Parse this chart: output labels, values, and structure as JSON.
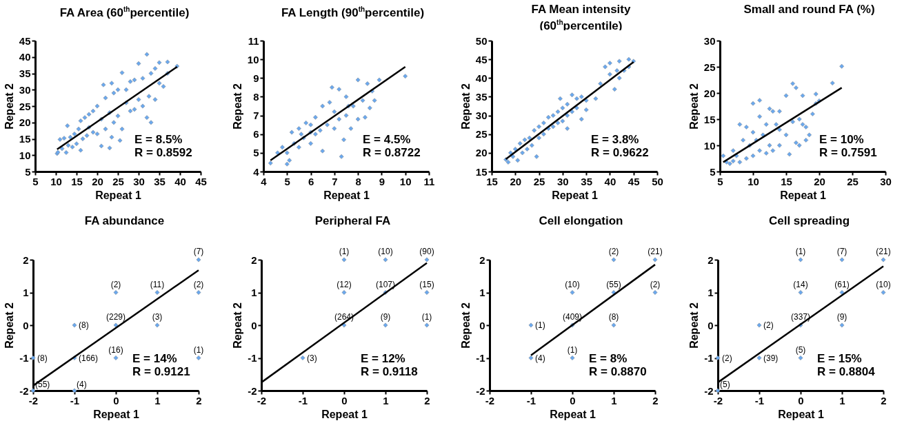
{
  "chart_data": [
    {
      "type": "scatter",
      "title": "FA Area (60$^{th}$percentile)",
      "xlabel": "Repeat 1",
      "ylabel": "Repeat 2",
      "xlim": [
        5,
        45
      ],
      "ylim": [
        5,
        45
      ],
      "xticks": [
        5,
        10,
        15,
        20,
        25,
        30,
        35,
        40,
        45
      ],
      "yticks": [
        5,
        10,
        15,
        20,
        25,
        30,
        35,
        40,
        45
      ],
      "annotations": [
        "E = 8.5%",
        "R = 0.8592"
      ],
      "series": [
        {
          "color": "#6aa8ee",
          "marker": "diamond",
          "x": [
            10.3,
            10.5,
            11,
            11.5,
            12,
            12.5,
            12.8,
            13,
            13.5,
            14,
            14.5,
            15,
            15.5,
            16,
            16,
            16.5,
            17,
            17.5,
            18,
            18,
            19,
            19,
            20,
            20,
            21,
            21,
            21.5,
            22,
            22,
            23,
            23,
            23.5,
            23.5,
            24,
            24,
            25,
            25,
            25.5,
            26,
            26,
            27,
            27,
            28,
            28,
            29,
            29,
            30,
            30,
            31,
            31,
            32,
            32,
            32.5,
            33,
            33,
            34,
            34,
            35,
            35,
            36,
            37,
            37,
            39.3
          ],
          "values": [
            10.5,
            10.9,
            14.8,
            12,
            15.2,
            10.8,
            19,
            13,
            15.5,
            12.5,
            16.5,
            13.5,
            18,
            11.5,
            20.5,
            15,
            21.5,
            16,
            18.5,
            22.5,
            17,
            23.5,
            16.5,
            25,
            12.8,
            21,
            31.5,
            18,
            27.5,
            12.2,
            23,
            15.5,
            32,
            20,
            29,
            22,
            30,
            14.5,
            18,
            35.2,
            26,
            30,
            23.5,
            32.5,
            24,
            33,
            27,
            38,
            25,
            33.5,
            21.5,
            40.8,
            28,
            20,
            35,
            27,
            36.5,
            32,
            38.3,
            31,
            38.5,
            35,
            37.2
          ]
        },
        {
          "type": "line",
          "color": "#000000",
          "x": [
            10.3,
            39.3
          ],
          "values": [
            11.8,
            37
          ]
        }
      ]
    },
    {
      "type": "scatter",
      "title": "FA Length (90$^{th}$percentile)",
      "xlabel": "Repeat 1",
      "ylabel": "Repeat 2",
      "xlim": [
        4,
        11
      ],
      "ylim": [
        4,
        11
      ],
      "xticks": [
        4,
        5,
        6,
        7,
        8,
        9,
        10,
        11
      ],
      "yticks": [
        4,
        5,
        6,
        7,
        8,
        9,
        10,
        11
      ],
      "annotations": [
        "E = 4.5%",
        "R = 0.8722"
      ],
      "series": [
        {
          "color": "#6aa8ee",
          "marker": "diamond",
          "x": [
            4.3,
            4.6,
            4.8,
            5,
            5,
            5.1,
            5.2,
            5.3,
            5.5,
            5.5,
            5.7,
            5.8,
            6,
            6,
            6.2,
            6.2,
            6.4,
            6.5,
            6.5,
            6.7,
            6.8,
            7,
            7,
            7.2,
            7.2,
            7.3,
            7.4,
            7.5,
            7.5,
            7.7,
            7.8,
            8,
            8,
            8.2,
            8.3,
            8.4,
            8.5,
            8.6,
            8.7,
            8.9,
            10,
            6.9,
            6,
            5.6,
            7.6
          ],
          "values": [
            4.45,
            5,
            5.3,
            4.4,
            5,
            4.6,
            6.1,
            5.5,
            5.3,
            6.3,
            5.8,
            6.6,
            5.5,
            6.5,
            6,
            6.9,
            6.2,
            5.1,
            7.5,
            6.5,
            7.7,
            6.3,
            7.2,
            6.8,
            8.4,
            4.8,
            5.7,
            7,
            8,
            6.3,
            7.5,
            6.8,
            8.9,
            7.8,
            6.9,
            8.7,
            7.4,
            8.3,
            7.8,
            8.9,
            9.1,
            8.5,
            6.1,
            6,
            7.5
          ]
        },
        {
          "type": "line",
          "color": "#000000",
          "x": [
            4.3,
            10
          ],
          "values": [
            4.6,
            9.6
          ]
        }
      ]
    },
    {
      "type": "scatter",
      "title": "FA Mean intensity (60$^{th}$percentile)",
      "xlabel": "Repeat 1",
      "ylabel": "Repeat 2",
      "xlim": [
        15,
        50
      ],
      "ylim": [
        15,
        50
      ],
      "xticks": [
        15,
        20,
        25,
        30,
        35,
        40,
        45,
        50
      ],
      "yticks": [
        15,
        20,
        25,
        30,
        35,
        40,
        45,
        50
      ],
      "annotations": [
        "E = 3.8%",
        "R = 0.9622"
      ],
      "series": [
        {
          "color": "#6aa8ee",
          "marker": "diamond",
          "x": [
            18,
            18.5,
            19,
            19.5,
            20,
            20.5,
            21,
            21.5,
            22,
            22.5,
            23,
            23.5,
            24,
            24.5,
            25,
            25,
            26,
            26,
            27,
            27,
            28,
            28,
            29,
            29,
            29.5,
            30,
            30,
            31,
            31,
            32,
            32,
            33,
            33,
            34,
            34,
            35,
            35,
            37,
            38,
            39,
            40,
            40,
            41,
            41.5,
            42,
            42,
            43,
            44,
            45,
            44,
            31
          ],
          "values": [
            18.2,
            17.5,
            20,
            19,
            21,
            18,
            22.5,
            20,
            23.5,
            21,
            24,
            22,
            26,
            19,
            27,
            24,
            28,
            25,
            29.5,
            26.5,
            30,
            27,
            31,
            28,
            34.5,
            32,
            28.5,
            33,
            30,
            35.5,
            31,
            34.5,
            32,
            35,
            29,
            34,
            31.5,
            34.5,
            38.5,
            43,
            41,
            44,
            37,
            42,
            44.5,
            40,
            42,
            45,
            44.5,
            43,
            26.5
          ]
        },
        {
          "type": "line",
          "color": "#000000",
          "x": [
            18,
            45
          ],
          "values": [
            18.3,
            44.3
          ]
        }
      ]
    },
    {
      "type": "scatter",
      "title": "Small and round FA (%)",
      "xlabel": "Repeat 1",
      "ylabel": "Repeat 2",
      "xlim": [
        5,
        30
      ],
      "ylim": [
        5,
        30
      ],
      "xticks": [
        5,
        10,
        15,
        20,
        25,
        30
      ],
      "yticks": [
        5,
        10,
        15,
        20,
        25,
        30
      ],
      "annotations": [
        "E = 10%",
        "R = 0.7591"
      ],
      "series": [
        {
          "color": "#6aa8ee",
          "marker": "diamond",
          "x": [
            5.5,
            6,
            6.5,
            7,
            7,
            7.5,
            8,
            8,
            8.5,
            9,
            9,
            9.5,
            10,
            10,
            10,
            10.5,
            11,
            11,
            11,
            11.5,
            12,
            12,
            12.5,
            12.5,
            13,
            13,
            13.5,
            14,
            14,
            15,
            15,
            15.5,
            16,
            16,
            16.5,
            16.5,
            17,
            17,
            17.5,
            17.5,
            18,
            18,
            18.5,
            19,
            19.5,
            19.5,
            20,
            22,
            23.4,
            14
          ],
          "values": [
            8,
            6.8,
            6.5,
            9,
            7,
            8,
            14,
            6.8,
            11,
            13.5,
            7.5,
            10,
            12.5,
            8,
            18,
            11,
            18.6,
            9,
            15.5,
            12,
            14,
            8.5,
            17,
            10,
            16.5,
            9,
            14,
            16.5,
            10,
            19.5,
            12,
            8.3,
            21.8,
            14.5,
            21,
            10.5,
            15,
            10,
            19.5,
            14,
            13.5,
            11,
            12,
            16,
            19.8,
            18,
            18.5,
            21.9,
            25.1,
            13
          ]
        },
        {
          "type": "line",
          "color": "#000000",
          "x": [
            5.5,
            23.4
          ],
          "values": [
            6.8,
            21
          ]
        }
      ]
    },
    {
      "type": "scatter",
      "title": "FA abundance",
      "xlabel": "Repeat 1",
      "ylabel": "Repeat 2",
      "xlim": [
        -2,
        2
      ],
      "ylim": [
        -2,
        2
      ],
      "xticks": [
        -2,
        -1,
        0,
        1,
        2
      ],
      "yticks": [
        -2,
        -1,
        0,
        1,
        2
      ],
      "annotations": [
        "E = 14%",
        "R = 0.9121",
        {
          "text": "(7)",
          "x": 2,
          "y": 2
        },
        {
          "text": "(2)",
          "x": 0,
          "y": 1
        },
        {
          "text": "(11)",
          "x": 1,
          "y": 1
        },
        {
          "text": "(2)",
          "x": 2,
          "y": 1
        },
        {
          "text": "(8)",
          "x": -1,
          "y": 0
        },
        {
          "text": "(229)",
          "x": 0,
          "y": 0
        },
        {
          "text": "(3)",
          "x": 1,
          "y": 0
        },
        {
          "text": "(8)",
          "x": -2,
          "y": -1
        },
        {
          "text": "(166)",
          "x": -1,
          "y": -1
        },
        {
          "text": "(16)",
          "x": 0,
          "y": -1
        },
        {
          "text": "(1)",
          "x": 2,
          "y": -1
        },
        {
          "text": "(55)",
          "x": -2,
          "y": -2
        },
        {
          "text": "(4)",
          "x": -1,
          "y": -2
        }
      ],
      "series": [
        {
          "color": "#6aa8ee",
          "marker": "diamond",
          "x": [
            2,
            0,
            1,
            2,
            -1,
            0,
            1,
            -2,
            -1,
            0,
            2,
            -2,
            -1
          ],
          "values": [
            2,
            1,
            1,
            1,
            0,
            0,
            0,
            -1,
            -1,
            -1,
            -1,
            -2,
            -2
          ]
        },
        {
          "type": "line",
          "color": "#000000",
          "x": [
            -2,
            2
          ],
          "values": [
            -1.85,
            1.68
          ]
        }
      ]
    },
    {
      "type": "scatter",
      "title": "Peripheral FA",
      "xlabel": "Repeat 1",
      "ylabel": "Repeat 2",
      "xlim": [
        -2,
        2
      ],
      "ylim": [
        -2,
        2
      ],
      "xticks": [
        -2,
        -1,
        0,
        1,
        2
      ],
      "yticks": [
        -2,
        -1,
        0,
        1,
        2
      ],
      "annotations": [
        "E = 12%",
        "R = 0.9118",
        {
          "text": "(1)",
          "x": 0,
          "y": 2
        },
        {
          "text": "(10)",
          "x": 1,
          "y": 2
        },
        {
          "text": "(90)",
          "x": 2,
          "y": 2
        },
        {
          "text": "(12)",
          "x": 0,
          "y": 1
        },
        {
          "text": "(107)",
          "x": 1,
          "y": 1
        },
        {
          "text": "(15)",
          "x": 2,
          "y": 1
        },
        {
          "text": "(264)",
          "x": 0,
          "y": 0
        },
        {
          "text": "(9)",
          "x": 1,
          "y": 0
        },
        {
          "text": "(1)",
          "x": 2,
          "y": 0
        },
        {
          "text": "(3)",
          "x": -1,
          "y": -1
        }
      ],
      "series": [
        {
          "color": "#6aa8ee",
          "marker": "diamond",
          "x": [
            0,
            1,
            2,
            0,
            1,
            2,
            0,
            1,
            2,
            -1
          ],
          "values": [
            2,
            2,
            2,
            1,
            1,
            1,
            0,
            0,
            0,
            -1
          ]
        },
        {
          "type": "line",
          "color": "#000000",
          "x": [
            -2,
            2
          ],
          "values": [
            -1.75,
            1.9
          ]
        }
      ]
    },
    {
      "type": "scatter",
      "title": "Cell elongation",
      "xlabel": "Repeat 1",
      "ylabel": "Repeat 2",
      "xlim": [
        -2,
        2
      ],
      "ylim": [
        -2,
        2
      ],
      "xticks": [
        -2,
        -1,
        0,
        1,
        2
      ],
      "yticks": [
        -2,
        -1,
        0,
        1,
        2
      ],
      "annotations": [
        "E = 8%",
        "R = 0.8870",
        {
          "text": "(2)",
          "x": 1,
          "y": 2
        },
        {
          "text": "(21)",
          "x": 2,
          "y": 2
        },
        {
          "text": "(10)",
          "x": 0,
          "y": 1
        },
        {
          "text": "(55)",
          "x": 1,
          "y": 1
        },
        {
          "text": "(2)",
          "x": 2,
          "y": 1
        },
        {
          "text": "(1)",
          "x": -1,
          "y": 0
        },
        {
          "text": "(409)",
          "x": 0,
          "y": 0
        },
        {
          "text": "(8)",
          "x": 1,
          "y": 0
        },
        {
          "text": "(4)",
          "x": -1,
          "y": -1
        },
        {
          "text": "(1)",
          "x": 0,
          "y": -1
        }
      ],
      "series": [
        {
          "color": "#6aa8ee",
          "marker": "diamond",
          "x": [
            1,
            2,
            0,
            1,
            2,
            -1,
            0,
            1,
            -1,
            0
          ],
          "values": [
            2,
            2,
            1,
            1,
            1,
            0,
            0,
            0,
            -1,
            -1
          ]
        },
        {
          "type": "line",
          "color": "#000000",
          "x": [
            -1,
            2
          ],
          "values": [
            -0.92,
            1.85
          ]
        }
      ]
    },
    {
      "type": "scatter",
      "title": "Cell spreading",
      "xlabel": "Repeat 1",
      "ylabel": "Repeat 2",
      "xlim": [
        -2,
        2
      ],
      "ylim": [
        -2,
        2
      ],
      "xticks": [
        -2,
        -1,
        0,
        1,
        2
      ],
      "yticks": [
        -2,
        -1,
        0,
        1,
        2
      ],
      "annotations": [
        "E = 15%",
        "R = 0.8804",
        {
          "text": "(1)",
          "x": 0,
          "y": 2
        },
        {
          "text": "(7)",
          "x": 1,
          "y": 2
        },
        {
          "text": "(21)",
          "x": 2,
          "y": 2
        },
        {
          "text": "(14)",
          "x": 0,
          "y": 1
        },
        {
          "text": "(61)",
          "x": 1,
          "y": 1
        },
        {
          "text": "(10)",
          "x": 2,
          "y": 1
        },
        {
          "text": "(2)",
          "x": -1,
          "y": 0
        },
        {
          "text": "(337)",
          "x": 0,
          "y": 0
        },
        {
          "text": "(9)",
          "x": 1,
          "y": 0
        },
        {
          "text": "(2)",
          "x": -2,
          "y": -1
        },
        {
          "text": "(39)",
          "x": -1,
          "y": -1
        },
        {
          "text": "(5)",
          "x": 0,
          "y": -1
        },
        {
          "text": "(5)",
          "x": -2,
          "y": -2
        }
      ],
      "series": [
        {
          "color": "#6aa8ee",
          "marker": "diamond",
          "x": [
            0,
            1,
            2,
            0,
            1,
            2,
            -1,
            0,
            1,
            -2,
            -1,
            0,
            -2
          ],
          "values": [
            2,
            2,
            2,
            1,
            1,
            1,
            0,
            0,
            0,
            -1,
            -1,
            -1,
            -2
          ]
        },
        {
          "type": "line",
          "color": "#000000",
          "x": [
            -2,
            2
          ],
          "values": [
            -1.75,
            1.8
          ]
        }
      ]
    }
  ]
}
